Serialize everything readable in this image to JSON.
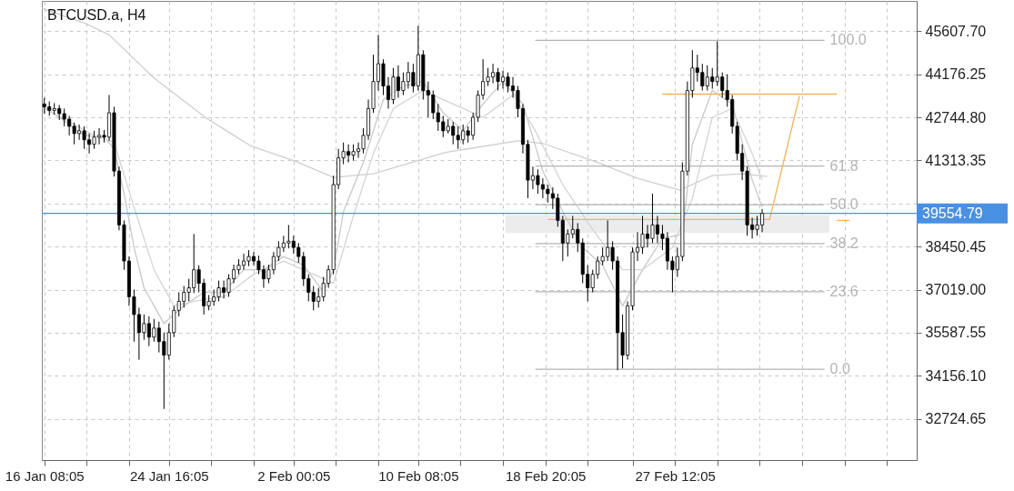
{
  "chart_data": {
    "type": "candlestick",
    "title": "BTCUSD.a, H4",
    "x": [
      "--01-16T08:05",
      "--01-16T16:05",
      "--01-17T00:05",
      "--01-17T08:05",
      "--01-17T16:05",
      "--01-18T00:05",
      "--01-18T08:05",
      "--01-18T16:05",
      "--01-19T00:05",
      "--01-19T08:05",
      "--01-19T16:05",
      "--01-20T00:05",
      "--01-20T08:05",
      "--01-20T16:05",
      "--01-21T00:05",
      "--01-21T08:05",
      "--01-21T16:05",
      "--01-22T00:05",
      "--01-22T08:05",
      "--01-22T16:05",
      "--01-23T00:05",
      "--01-23T08:05",
      "--01-23T16:05",
      "--01-24T00:05",
      "--01-24T08:05",
      "--01-24T16:05",
      "--01-25T00:05",
      "--01-25T08:05",
      "--01-25T16:05",
      "--01-26T00:05",
      "--01-26T08:05",
      "--01-26T16:05",
      "--01-27T00:05",
      "--01-27T08:05",
      "--01-27T16:05",
      "--01-28T00:05",
      "--01-28T08:05",
      "--01-28T16:05",
      "--01-29T00:05",
      "--01-29T08:05",
      "--01-29T16:05",
      "--01-30T00:05",
      "--01-30T08:05",
      "--01-30T16:05",
      "--01-31T00:05",
      "--01-31T08:05",
      "--01-31T16:05",
      "--02-01T00:05",
      "--02-01T08:05",
      "--02-01T16:05",
      "--02-02T00:05",
      "--02-02T08:05",
      "--02-02T16:05",
      "--02-03T00:05",
      "--02-03T08:05",
      "--02-03T16:05",
      "--02-04T00:05",
      "--02-04T08:05",
      "--02-04T16:05",
      "--02-05T00:05",
      "--02-05T08:05",
      "--02-05T16:05",
      "--02-06T00:05",
      "--02-06T08:05",
      "--02-06T16:05",
      "--02-07T00:05",
      "--02-07T08:05",
      "--02-07T16:05",
      "--02-08T00:05",
      "--02-08T08:05",
      "--02-08T16:05",
      "--02-09T00:05",
      "--02-09T08:05",
      "--02-09T16:05",
      "--02-10T00:05",
      "--02-10T08:05",
      "--02-10T16:05",
      "--02-11T00:05",
      "--02-11T08:05",
      "--02-11T16:05",
      "--02-12T00:05",
      "--02-12T08:05",
      "--02-12T16:05",
      "--02-13T00:05",
      "--02-13T08:05",
      "--02-13T16:05",
      "--02-14T00:05",
      "--02-14T08:05",
      "--02-14T16:05",
      "--02-15T00:05",
      "--02-15T08:05",
      "--02-15T16:05",
      "--02-16T00:05",
      "--02-16T08:05",
      "--02-16T16:05",
      "--02-17T00:05",
      "--02-17T08:05",
      "--02-17T16:05",
      "--02-18T00:05",
      "--02-18T08:05",
      "--02-18T16:05",
      "--02-19T00:05",
      "--02-19T08:05",
      "--02-19T16:05",
      "--02-20T00:05",
      "--02-20T08:05",
      "--02-20T16:05",
      "--02-21T00:05",
      "--02-21T08:05",
      "--02-21T16:05",
      "--02-22T00:05",
      "--02-22T08:05",
      "--02-22T16:05",
      "--02-23T00:05",
      "--02-23T08:05",
      "--02-23T16:05",
      "--02-24T00:05",
      "--02-24T08:05",
      "--02-24T16:05",
      "--02-25T00:05",
      "--02-25T08:05",
      "--02-25T16:05",
      "--02-26T00:05",
      "--02-26T08:05",
      "--02-26T16:05",
      "--02-27T00:05",
      "--02-27T08:05",
      "--02-27T16:05",
      "--02-28T00:05",
      "--02-28T08:05",
      "--02-28T16:05",
      "--03-01T00:05",
      "--03-01T08:05",
      "--03-01T16:05",
      "--03-02T00:05",
      "--03-02T08:05",
      "--03-02T16:05",
      "--03-03T00:05",
      "--03-03T08:05",
      "--03-03T16:05",
      "--03-04T00:05",
      "--03-04T08:05",
      "--03-04T16:05",
      "--03-05T00:05",
      "--03-05T08:05"
    ],
    "color": "#000000",
    "ohlc": [
      [
        43190,
        43400,
        42870,
        43100
      ],
      [
        43100,
        43280,
        42800,
        42980
      ],
      [
        42980,
        43220,
        42840,
        43040
      ],
      [
        43040,
        43160,
        42660,
        42870
      ],
      [
        42870,
        43040,
        42450,
        42690
      ],
      [
        42690,
        42800,
        42150,
        42450
      ],
      [
        42450,
        42570,
        41850,
        42210
      ],
      [
        42210,
        42510,
        42000,
        42300
      ],
      [
        42300,
        42450,
        41700,
        42000
      ],
      [
        42000,
        42210,
        41550,
        41850
      ],
      [
        41850,
        42300,
        41700,
        42090
      ],
      [
        42090,
        42390,
        41850,
        42150
      ],
      [
        42150,
        42330,
        41910,
        42090
      ],
      [
        42090,
        43490,
        41970,
        42900
      ],
      [
        42900,
        43100,
        40780,
        40960
      ],
      [
        40960,
        41110,
        38990,
        39170
      ],
      [
        39170,
        39320,
        37680,
        37970
      ],
      [
        37970,
        38120,
        36480,
        36780
      ],
      [
        36780,
        37020,
        35290,
        36190
      ],
      [
        36190,
        36420,
        34690,
        35590
      ],
      [
        35590,
        36190,
        35350,
        35890
      ],
      [
        35890,
        36130,
        35140,
        35440
      ],
      [
        35440,
        36040,
        35290,
        35740
      ],
      [
        35740,
        35950,
        34930,
        35290
      ],
      [
        35290,
        35590,
        33050,
        34840
      ],
      [
        34840,
        35890,
        34690,
        35590
      ],
      [
        35590,
        36480,
        35440,
        36330
      ],
      [
        36330,
        36930,
        36130,
        36630
      ],
      [
        36630,
        37140,
        36420,
        36930
      ],
      [
        36930,
        37380,
        36630,
        37080
      ],
      [
        37080,
        38870,
        36900,
        37680
      ],
      [
        37680,
        37830,
        36930,
        37230
      ],
      [
        37230,
        37380,
        36190,
        36480
      ],
      [
        36480,
        36840,
        36330,
        36630
      ],
      [
        36630,
        37020,
        36480,
        36780
      ],
      [
        36780,
        37320,
        36630,
        37080
      ],
      [
        37080,
        37320,
        36720,
        36930
      ],
      [
        36930,
        37530,
        36780,
        37380
      ],
      [
        37380,
        37850,
        37230,
        37680
      ],
      [
        37680,
        38030,
        37530,
        37830
      ],
      [
        37830,
        38210,
        37680,
        37970
      ],
      [
        37970,
        38330,
        37800,
        38120
      ],
      [
        38120,
        38270,
        37830,
        37970
      ],
      [
        37970,
        38150,
        37530,
        37680
      ],
      [
        37680,
        37830,
        37080,
        37380
      ],
      [
        37380,
        37850,
        37230,
        37680
      ],
      [
        37680,
        38270,
        37530,
        38120
      ],
      [
        38120,
        38630,
        37970,
        38420
      ],
      [
        38420,
        38810,
        38270,
        38570
      ],
      [
        38570,
        39170,
        38390,
        38630
      ],
      [
        38630,
        38810,
        38210,
        38420
      ],
      [
        38420,
        38570,
        37910,
        38120
      ],
      [
        38120,
        38270,
        37140,
        37380
      ],
      [
        37380,
        37530,
        36630,
        36930
      ],
      [
        36930,
        37140,
        36330,
        36630
      ],
      [
        36630,
        37080,
        36420,
        36780
      ],
      [
        36780,
        37440,
        36630,
        37230
      ],
      [
        37230,
        37830,
        37080,
        37680
      ],
      [
        37680,
        40810,
        37530,
        40510
      ],
      [
        40510,
        41700,
        40360,
        41400
      ],
      [
        41400,
        41910,
        41190,
        41610
      ],
      [
        41610,
        41850,
        41250,
        41490
      ],
      [
        41490,
        41850,
        41310,
        41610
      ],
      [
        41610,
        41910,
        41400,
        41700
      ],
      [
        41700,
        42390,
        41550,
        42150
      ],
      [
        42150,
        43340,
        42000,
        43040
      ],
      [
        43040,
        44830,
        42900,
        43940
      ],
      [
        43940,
        45490,
        43640,
        44530
      ],
      [
        44530,
        44680,
        43490,
        43790
      ],
      [
        43790,
        44090,
        43040,
        43340
      ],
      [
        43340,
        44390,
        43190,
        44090
      ],
      [
        44090,
        44480,
        43400,
        43640
      ],
      [
        43640,
        44240,
        43490,
        43940
      ],
      [
        43940,
        44590,
        43700,
        44240
      ],
      [
        44240,
        44530,
        43580,
        43790
      ],
      [
        43790,
        45790,
        43640,
        44830
      ],
      [
        44830,
        44980,
        43340,
        43640
      ],
      [
        43640,
        43940,
        42750,
        43490
      ],
      [
        43490,
        43640,
        42690,
        42900
      ],
      [
        42900,
        43190,
        42300,
        42600
      ],
      [
        42600,
        42800,
        42090,
        42300
      ],
      [
        42300,
        42690,
        42210,
        42450
      ],
      [
        42450,
        42600,
        41850,
        42150
      ],
      [
        42150,
        42450,
        41700,
        42000
      ],
      [
        42000,
        42510,
        41850,
        42300
      ],
      [
        42300,
        42450,
        41910,
        42150
      ],
      [
        42150,
        42900,
        42000,
        42750
      ],
      [
        42750,
        43640,
        42600,
        43490
      ],
      [
        43490,
        44680,
        43340,
        43940
      ],
      [
        43940,
        44390,
        43790,
        44090
      ],
      [
        44090,
        44530,
        43880,
        44240
      ],
      [
        44240,
        44390,
        43640,
        43940
      ],
      [
        43940,
        44300,
        43700,
        44090
      ],
      [
        44090,
        44240,
        43580,
        43790
      ],
      [
        43790,
        44090,
        43400,
        43640
      ],
      [
        43640,
        43790,
        42750,
        43040
      ],
      [
        43040,
        43190,
        41550,
        41850
      ],
      [
        41850,
        42000,
        40060,
        40660
      ],
      [
        40660,
        41110,
        40360,
        40810
      ],
      [
        40810,
        41020,
        40210,
        40510
      ],
      [
        40510,
        40720,
        40060,
        40360
      ],
      [
        40360,
        40510,
        39910,
        40210
      ],
      [
        40210,
        40420,
        39700,
        40060
      ],
      [
        40060,
        40210,
        39110,
        39320
      ],
      [
        39320,
        39470,
        37970,
        38570
      ],
      [
        38570,
        39020,
        38120,
        38870
      ],
      [
        38870,
        39470,
        38720,
        39020
      ],
      [
        39020,
        39230,
        38270,
        38570
      ],
      [
        38570,
        38720,
        37230,
        37530
      ],
      [
        37530,
        37830,
        36630,
        37080
      ],
      [
        37080,
        37680,
        36930,
        37530
      ],
      [
        37530,
        38120,
        37380,
        37970
      ],
      [
        37970,
        38420,
        37830,
        38120
      ],
      [
        38120,
        39320,
        37970,
        38420
      ],
      [
        38420,
        38630,
        37680,
        37970
      ],
      [
        37970,
        38120,
        34340,
        35590
      ],
      [
        35590,
        36190,
        34400,
        34840
      ],
      [
        34840,
        36630,
        34690,
        36480
      ],
      [
        36480,
        38420,
        36330,
        38270
      ],
      [
        38270,
        38930,
        37970,
        38420
      ],
      [
        38420,
        39470,
        38210,
        38870
      ],
      [
        38870,
        39170,
        38420,
        38720
      ],
      [
        38720,
        40210,
        38570,
        39170
      ],
      [
        39170,
        39470,
        38570,
        38870
      ],
      [
        38870,
        39170,
        38330,
        38720
      ],
      [
        38720,
        38930,
        37680,
        37970
      ],
      [
        37970,
        38120,
        36930,
        37680
      ],
      [
        37680,
        38420,
        37440,
        38120
      ],
      [
        38120,
        41250,
        37970,
        40960
      ],
      [
        40960,
        43940,
        40810,
        43640
      ],
      [
        43640,
        44980,
        43400,
        44390
      ],
      [
        44390,
        44830,
        43940,
        44240
      ],
      [
        44240,
        44530,
        43640,
        43790
      ],
      [
        43790,
        44480,
        43640,
        44090
      ],
      [
        44090,
        44390,
        43700,
        43940
      ],
      [
        43940,
        45280,
        43790,
        44090
      ],
      [
        44090,
        44240,
        43400,
        43640
      ],
      [
        43640,
        44180,
        43100,
        43340
      ],
      [
        43340,
        43490,
        42210,
        42450
      ],
      [
        42450,
        42600,
        41310,
        41550
      ],
      [
        41550,
        41850,
        40660,
        40960
      ],
      [
        40960,
        41110,
        38810,
        39170
      ],
      [
        39170,
        39410,
        38720,
        39020
      ],
      [
        39020,
        39470,
        38810,
        39170
      ],
      [
        39170,
        39700,
        38930,
        39554.79
      ]
    ],
    "series": [
      {
        "type": "line",
        "color": "#ececec",
        "x": [
          "--02-16T04:05",
          "--03-09T20:05"
        ],
        "values": [
          null,
          null
        ],
        "lower": [
          38900,
          38900
        ],
        "upper": [
          39500,
          39500
        ]
      },
      {
        "type": "line",
        "color": "#cfcfcf",
        "x": [
          "--01-16T04:05",
          "--01-19T04:05",
          "--01-20T16:05",
          "--01-23T16:05",
          "--01-27T04:05",
          "--01-30T04:05",
          "--02-02T04:05",
          "--02-04T16:05",
          "--02-07T08:05",
          "--02-12T04:05",
          "--02-17T00:05",
          "--02-18T16:05",
          "--02-22T04:05",
          "--02-25T00:05",
          "--02-27T20:05",
          "--03-02T00:05",
          "--03-04T00:05",
          "--03-05T16:05"
        ],
        "values": [
          46380,
          45850,
          45490,
          44060,
          42720,
          41790,
          41280,
          40750,
          40870,
          41580,
          41970,
          41880,
          41280,
          40720,
          40330,
          40810,
          40870,
          40780
        ]
      },
      {
        "type": "line",
        "color": "#c8c8c8",
        "x": [
          "--01-16T08:05",
          "--01-19T00:05",
          "--01-20T08:05",
          "--01-21T00:05",
          "--01-21T16:05",
          "--01-22T08:05",
          "--01-23T00:05",
          "--01-24T08:05",
          "--01-25T16:05",
          "--01-27T00:05",
          "--01-28T08:05",
          "--01-29T16:05",
          "--01-31T00:05",
          "--02-01T08:05",
          "--02-02T16:05",
          "--02-04T00:05",
          "--02-04T16:05",
          "--02-05T08:05",
          "--02-06T16:05",
          "--02-08T00:05",
          "--02-09T08:05",
          "--02-10T16:05",
          "--02-12T00:05",
          "--02-13T08:05",
          "--02-14T16:05",
          "--02-16T00:05",
          "--02-17T08:05",
          "--02-18T16:05",
          "--02-20T00:05",
          "--02-21T08:05",
          "--02-22T16:05",
          "--02-24T00:05",
          "--02-25T08:05",
          "--02-26T16:05",
          "--02-28T00:05",
          "--02-28T16:05",
          "--03-02T00:05",
          "--03-03T08:05",
          "--03-04T16:05",
          "--03-05T08:05"
        ],
        "values": [
          43100,
          42150,
          42090,
          41700,
          40210,
          38420,
          37080,
          35890,
          36480,
          36930,
          36930,
          37680,
          37680,
          38120,
          37830,
          36930,
          37680,
          39610,
          41250,
          43340,
          43790,
          43940,
          42900,
          42300,
          43190,
          43940,
          43190,
          40960,
          39610,
          38420,
          37830,
          36480,
          37680,
          38720,
          38870,
          41850,
          43640,
          43190,
          40660,
          39760
        ]
      },
      {
        "type": "line",
        "color": "#d4d4d4",
        "x": [
          "--01-16T08:05",
          "--01-19T16:05",
          "--01-21T00:05",
          "--01-22T08:05",
          "--01-23T16:05",
          "--01-25T00:05",
          "--01-26T08:05",
          "--01-28T08:05",
          "--01-30T08:05",
          "--02-01T08:05",
          "--02-03T08:05",
          "--02-04T16:05",
          "--02-06T00:05",
          "--02-07T08:05",
          "--02-08T16:05",
          "--02-10T16:05",
          "--02-12T16:05",
          "--02-14T16:05",
          "--02-16T16:05",
          "--02-18T00:05",
          "--02-20T00:05",
          "--02-22T00:05",
          "--02-24T00:05",
          "--02-25T08:05",
          "--02-27T08:05",
          "--02-28T16:05",
          "--03-02T00:05",
          "--03-03T08:05",
          "--03-04T16:05",
          "--03-05T08:05"
        ],
        "values": [
          43040,
          42150,
          41910,
          39760,
          37680,
          36480,
          36630,
          36780,
          37530,
          37970,
          37530,
          37230,
          39470,
          41550,
          43040,
          43640,
          43190,
          42750,
          43490,
          42450,
          40510,
          39020,
          37680,
          37680,
          38420,
          40060,
          42750,
          43040,
          41550,
          40660
        ]
      },
      {
        "type": "line",
        "name": "100.0",
        "color": "#b4b4b4",
        "x": [
          "--02-18T04:05",
          "--03-09T12:05"
        ],
        "values": [
          45310,
          45310
        ]
      },
      {
        "type": "line",
        "name": "61.8",
        "color": "#b4b4b4",
        "x": [
          "--02-18T04:05",
          "--03-09T12:05"
        ],
        "values": [
          41130,
          41130
        ]
      },
      {
        "type": "line",
        "name": "50.0",
        "color": "#b4b4b4",
        "x": [
          "--02-18T04:05",
          "--03-09T12:05"
        ],
        "values": [
          39840,
          39840
        ]
      },
      {
        "type": "line",
        "name": "38.2",
        "color": "#b4b4b4",
        "x": [
          "--02-18T04:05",
          "--03-09T12:05"
        ],
        "values": [
          38550,
          38550
        ]
      },
      {
        "type": "line",
        "name": "23.6",
        "color": "#b4b4b4",
        "x": [
          "--02-18T04:05",
          "--03-09T12:05"
        ],
        "values": [
          36950,
          36950
        ]
      },
      {
        "type": "line",
        "name": "0.0",
        "color": "#b4b4b4",
        "x": [
          "--02-18T04:05",
          "--03-09T12:05"
        ],
        "values": [
          34370,
          34370
        ]
      },
      {
        "type": "line",
        "color": "#f2b45c",
        "x": [
          "--02-19T00:05",
          "--03-05T20:05",
          "--03-07T20:05"
        ],
        "values": [
          39350,
          39350,
          43460
        ]
      },
      {
        "type": "line",
        "color": "#f2b45c",
        "x": [
          "--02-26T16:05",
          "--03-10T08:05"
        ],
        "values": [
          43520,
          43520
        ]
      },
      {
        "type": "line",
        "color": "#f2b45c",
        "x": [
          "--03-10T08:05",
          "--03-11T04:05"
        ],
        "values": [
          39320,
          39320
        ]
      }
    ],
    "ref_lines": [
      {
        "axis": "y",
        "value": 39554.79,
        "label": "39554.79",
        "color": "#4a90e2"
      }
    ],
    "xlim": [
      "--01-16T04:05",
      "--03-15T16:05"
    ],
    "xticks": [
      {
        "value": "--01-16T08:05",
        "label": "16 Jan 08:05"
      },
      {
        "value": "--01-19T04:05",
        "label": null
      },
      {
        "value": "--01-22T00:05",
        "label": null
      },
      {
        "value": "--01-24T16:05",
        "label": "24 Jan 16:05"
      },
      {
        "value": "--01-27T12:05",
        "label": null
      },
      {
        "value": "--01-30T08:05",
        "label": null
      },
      {
        "value": "--02-02T00:05",
        "label": "2 Feb 00:05"
      },
      {
        "value": "--02-04T20:05",
        "label": null
      },
      {
        "value": "--02-07T16:05",
        "label": null
      },
      {
        "value": "--02-10T08:05",
        "label": "10 Feb 08:05"
      },
      {
        "value": "--02-13T04:05",
        "label": null
      },
      {
        "value": "--02-16T00:05",
        "label": null
      },
      {
        "value": "--02-18T20:05",
        "label": "18 Feb 20:05"
      },
      {
        "value": "--02-21T16:05",
        "label": null
      },
      {
        "value": "--02-24T16:05",
        "label": null
      },
      {
        "value": "--02-27T12:05",
        "label": "27 Feb 12:05"
      },
      {
        "value": "--03-02T08:05",
        "label": null
      },
      {
        "value": "--03-05T04:05",
        "label": null
      },
      {
        "value": "--03-08T00:05",
        "label": null
      },
      {
        "value": "--03-10T20:05",
        "label": null
      },
      {
        "value": "--03-13T16:05",
        "label": null
      }
    ],
    "ylim": [
      31350,
      46620
    ],
    "yticks": [
      {
        "value": 45607.7,
        "label": "45607.70"
      },
      {
        "value": 44176.25,
        "label": "44176.25"
      },
      {
        "value": 42744.8,
        "label": "42744.80"
      },
      {
        "value": 41313.35,
        "label": "41313.35"
      },
      {
        "value": 39881.9,
        "label": null
      },
      {
        "value": 38450.45,
        "label": "38450.45"
      },
      {
        "value": 37019,
        "label": "37019.00"
      },
      {
        "value": 35587.55,
        "label": "35587.55"
      },
      {
        "value": 34156.1,
        "label": "34156.10"
      },
      {
        "value": 32724.65,
        "label": "32724.65"
      }
    ],
    "grid": true
  }
}
